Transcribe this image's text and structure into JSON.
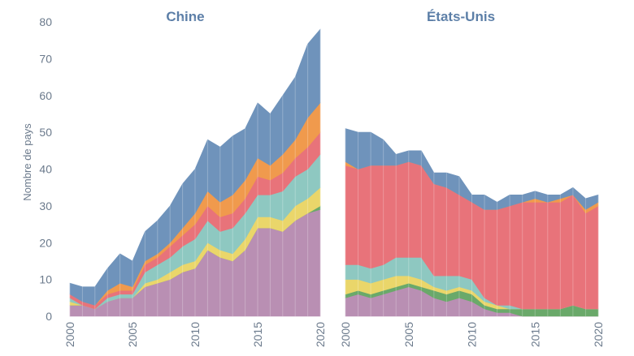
{
  "chart_data": {
    "type": "area",
    "stacked": true,
    "ylabel": "Nombre de pays",
    "ylim": [
      0,
      80
    ],
    "yticks": [
      0,
      10,
      20,
      30,
      40,
      50,
      60,
      70,
      80
    ],
    "xticks": [
      2000,
      2005,
      2010,
      2015,
      2020
    ],
    "x": [
      2000,
      2001,
      2002,
      2003,
      2004,
      2005,
      2006,
      2007,
      2008,
      2009,
      2010,
      2011,
      2012,
      2013,
      2014,
      2015,
      2016,
      2017,
      2018,
      2019,
      2020
    ],
    "colors": [
      "#b98fb3",
      "#6aa96a",
      "#ead66a",
      "#8ec8c1",
      "#e8737a",
      "#f09a4d",
      "#6f93bb"
    ],
    "panels": [
      {
        "title": "Chine",
        "series": [
          {
            "color": "#b98fb3",
            "values": [
              3,
              3,
              2,
              4,
              5,
              5,
              8,
              9,
              10,
              12,
              13,
              18,
              16,
              15,
              18,
              24,
              24,
              23,
              26,
              28,
              29
            ]
          },
          {
            "color": "#6aa96a",
            "values": [
              0,
              0,
              0,
              0,
              0,
              0,
              0,
              0,
              0,
              0,
              0,
              0,
              0,
              0,
              0,
              0,
              0,
              0,
              0,
              0,
              1
            ]
          },
          {
            "color": "#ead66a",
            "values": [
              1,
              0,
              0,
              0,
              0,
              0,
              1,
              1,
              2,
              2,
              2,
              2,
              2,
              2,
              3,
              3,
              3,
              3,
              4,
              4,
              5
            ]
          },
          {
            "color": "#8ec8c1",
            "values": [
              1,
              0,
              0,
              1,
              1,
              1,
              3,
              4,
              4,
              5,
              6,
              6,
              5,
              7,
              7,
              6,
              6,
              8,
              8,
              8,
              9
            ]
          },
          {
            "color": "#e8737a",
            "values": [
              1,
              1,
              1,
              1,
              1,
              1,
              2,
              2,
              3,
              3,
              4,
              4,
              4,
              4,
              4,
              5,
              4,
              5,
              5,
              6,
              6
            ]
          },
          {
            "color": "#f09a4d",
            "values": [
              0,
              0,
              0,
              1,
              2,
              1,
              1,
              1,
              1,
              2,
              3,
              4,
              4,
              5,
              5,
              5,
              4,
              5,
              5,
              8,
              8
            ]
          },
          {
            "color": "#6f93bb",
            "values": [
              3,
              4,
              5,
              6,
              8,
              7,
              8,
              9,
              10,
              12,
              12,
              14,
              15,
              16,
              14,
              15,
              14,
              16,
              17,
              20,
              20
            ]
          }
        ]
      },
      {
        "title": "États-Unis",
        "series": [
          {
            "color": "#b98fb3",
            "values": [
              5,
              6,
              5,
              6,
              7,
              8,
              7,
              5,
              4,
              5,
              4,
              2,
              1,
              1,
              0,
              0,
              0,
              0,
              0,
              0,
              0
            ]
          },
          {
            "color": "#6aa96a",
            "values": [
              1,
              1,
              1,
              1,
              1,
              1,
              1,
              2,
              2,
              2,
              2,
              1,
              1,
              1,
              2,
              2,
              2,
              2,
              3,
              2,
              2
            ]
          },
          {
            "color": "#ead66a",
            "values": [
              4,
              3,
              3,
              3,
              3,
              2,
              2,
              1,
              1,
              1,
              1,
              1,
              1,
              0,
              0,
              0,
              0,
              0,
              0,
              0,
              0
            ]
          },
          {
            "color": "#8ec8c1",
            "values": [
              4,
              4,
              4,
              4,
              5,
              5,
              6,
              3,
              4,
              3,
              3,
              1,
              0,
              1,
              0,
              0,
              0,
              0,
              0,
              0,
              0
            ]
          },
          {
            "color": "#e8737a",
            "values": [
              27,
              26,
              28,
              27,
              25,
              26,
              25,
              25,
              24,
              22,
              21,
              24,
              26,
              27,
              29,
              29,
              29,
              29,
              30,
              26,
              28
            ]
          },
          {
            "color": "#f09a4d",
            "values": [
              1,
              0,
              0,
              0,
              0,
              0,
              0,
              0,
              0,
              0,
              0,
              0,
              0,
              0,
              0,
              1,
              0,
              1,
              0,
              1,
              1
            ]
          },
          {
            "color": "#6f93bb",
            "values": [
              9,
              10,
              9,
              7,
              3,
              3,
              4,
              3,
              4,
              5,
              2,
              4,
              2,
              3,
              2,
              2,
              2,
              1,
              2,
              3,
              2
            ]
          }
        ]
      }
    ]
  }
}
